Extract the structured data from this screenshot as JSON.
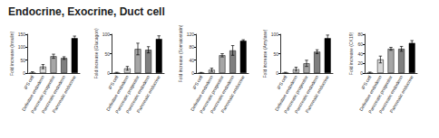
{
  "title": "Endocrine, Exocrine, Duct cell",
  "chart_data": [
    {
      "type": "bar",
      "ylabel": "Fold increase (Insulin)",
      "categories": [
        "iPS cell",
        "Definitive endoderm",
        "Pancreatic progenitor",
        "Pancreatic endoderm",
        "Pancreatic endocrine"
      ],
      "values": [
        0,
        25,
        65,
        58,
        135
      ],
      "errors": [
        5,
        8,
        8,
        5,
        8
      ],
      "colors": [
        "#ffffff",
        "#d9d9d9",
        "#a6a6a6",
        "#7f7f7f",
        "#000000"
      ],
      "ylim": [
        0,
        150
      ],
      "yticks": [
        0,
        50,
        100,
        150
      ],
      "grid": false
    },
    {
      "type": "bar",
      "ylabel": "Fold increase (Glucagon)",
      "categories": [
        "iPS cell",
        "Definitive endoderm",
        "Pancreatic progenitor",
        "Pancreatic endoderm",
        "Pancreatic endocrine"
      ],
      "values": [
        0,
        12,
        62,
        60,
        88
      ],
      "errors": [
        2,
        5,
        15,
        8,
        8
      ],
      "colors": [
        "#ffffff",
        "#d9d9d9",
        "#a6a6a6",
        "#7f7f7f",
        "#000000"
      ],
      "ylim": [
        0,
        100
      ],
      "yticks": [
        0,
        50,
        100
      ],
      "grid": false
    },
    {
      "type": "bar",
      "ylabel": "Fold increase (Somatostatin)",
      "categories": [
        "iPS cell",
        "Definitive endoderm",
        "Pancreatic progenitor",
        "Pancreatic endoderm",
        "Pancreatic endocrine"
      ],
      "values": [
        0,
        10,
        55,
        70,
        100
      ],
      "errors": [
        2,
        5,
        5,
        15,
        3
      ],
      "colors": [
        "#ffffff",
        "#d9d9d9",
        "#a6a6a6",
        "#7f7f7f",
        "#000000"
      ],
      "ylim": [
        0,
        120
      ],
      "yticks": [
        0,
        40,
        80,
        120
      ],
      "grid": false
    },
    {
      "type": "bar",
      "ylabel": "Fold increase (Amylase)",
      "categories": [
        "iPS cell",
        "Definitive endoderm",
        "Pancreatic progenitor",
        "Pancreatic endoderm",
        "Pancreatic endocrine"
      ],
      "values": [
        0,
        10,
        25,
        55,
        90
      ],
      "errors": [
        2,
        5,
        8,
        5,
        8
      ],
      "colors": [
        "#ffffff",
        "#d9d9d9",
        "#a6a6a6",
        "#7f7f7f",
        "#000000"
      ],
      "ylim": [
        0,
        100
      ],
      "yticks": [
        0,
        50,
        100
      ],
      "grid": false
    },
    {
      "type": "bar",
      "ylabel": "Fold increase (CK19)",
      "categories": [
        "iPS cell",
        "Definitive endoderm",
        "Pancreatic progenitor",
        "Pancreatic endoderm",
        "Pancreatic endocrine"
      ],
      "values": [
        0,
        28,
        50,
        50,
        62
      ],
      "errors": [
        2,
        7,
        3,
        5,
        5
      ],
      "colors": [
        "#ffffff",
        "#d9d9d9",
        "#a6a6a6",
        "#7f7f7f",
        "#000000"
      ],
      "ylim": [
        0,
        80
      ],
      "yticks": [
        0,
        20,
        40,
        60,
        80
      ],
      "grid": false
    }
  ]
}
